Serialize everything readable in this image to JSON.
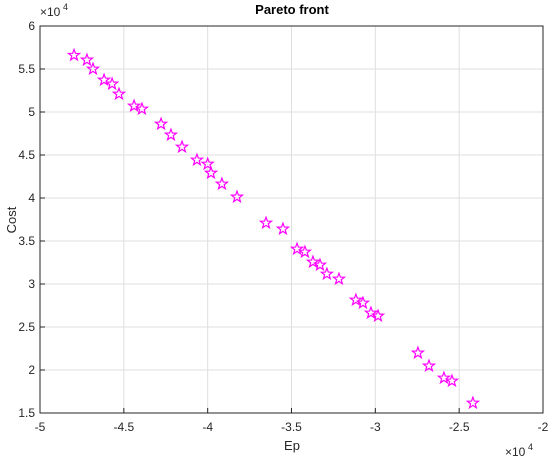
{
  "chart_data": {
    "type": "scatter",
    "title": "Pareto front",
    "x_label": "Ep",
    "y_label": "Cost",
    "x_scale": {
      "base": "×10",
      "exponent": "4"
    },
    "y_scale": {
      "base": "×10",
      "exponent": "4"
    },
    "color": "#ff00ff",
    "marker": "star",
    "grid": true,
    "xlim": [
      -50000,
      -20000
    ],
    "ylim": [
      15000,
      60000
    ],
    "xticks": [
      {
        "value": -50000,
        "label": "-5"
      },
      {
        "value": -45000,
        "label": "-4.5"
      },
      {
        "value": -40000,
        "label": "-4"
      },
      {
        "value": -35000,
        "label": "-3.5"
      },
      {
        "value": -30000,
        "label": "-3"
      },
      {
        "value": -25000,
        "label": "-2.5"
      },
      {
        "value": -20000,
        "label": "-2"
      }
    ],
    "yticks": [
      {
        "value": 15000,
        "label": "1.5"
      },
      {
        "value": 20000,
        "label": "2"
      },
      {
        "value": 25000,
        "label": "2.5"
      },
      {
        "value": 30000,
        "label": "3"
      },
      {
        "value": 35000,
        "label": "3.5"
      },
      {
        "value": 40000,
        "label": "4"
      },
      {
        "value": 45000,
        "label": "4.5"
      },
      {
        "value": 50000,
        "label": "5"
      },
      {
        "value": 55000,
        "label": "5.5"
      },
      {
        "value": 60000,
        "label": "6"
      }
    ],
    "x": [
      -47970,
      -47200,
      -46840,
      -46180,
      -45700,
      -45290,
      -44390,
      -43920,
      -42780,
      -42190,
      -41530,
      -40640,
      -40000,
      -39800,
      -39150,
      -38250,
      -36520,
      -35510,
      -34670,
      -34200,
      -33720,
      -33300,
      -32890,
      -32170,
      -31160,
      -30740,
      -30260,
      -29840,
      -27460,
      -26800,
      -25910,
      -25430,
      -24180
    ],
    "values": [
      56600,
      56050,
      55000,
      53720,
      53260,
      52090,
      50700,
      50350,
      48600,
      47330,
      45930,
      44420,
      43950,
      42900,
      41630,
      40120,
      37090,
      36400,
      34070,
      33720,
      32560,
      32210,
      31160,
      30580,
      28140,
      27790,
      26630,
      26280,
      21980,
      20470,
      19070,
      18720,
      16160
    ]
  }
}
